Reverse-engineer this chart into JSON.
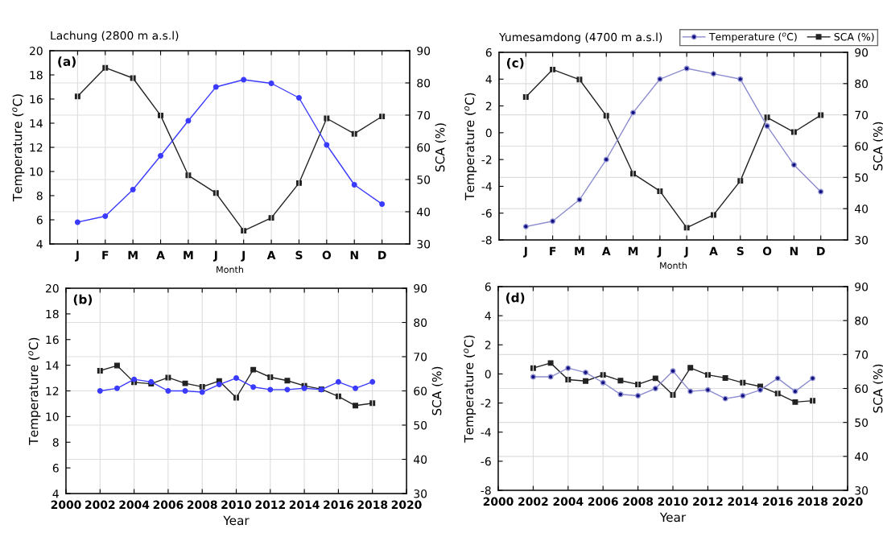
{
  "chart_data": [
    {
      "type": "line",
      "title": "Lachung (2800 m a.s.l)",
      "xlabel": "Month",
      "ylabel": "Temperature ($^{o}$C)",
      "y2label": "SCA (%)",
      "annotations": [
        "(a)"
      ],
      "categories": [
        "J",
        "F",
        "M",
        "A",
        "M",
        "J",
        "J",
        "A",
        "S",
        "O",
        "N",
        "D"
      ],
      "series": [
        {
          "color": "#3b3bff",
          "marker": "circle",
          "values": [
            5.8,
            6.3,
            8.5,
            11.3,
            14.2,
            17.0,
            17.6,
            17.3,
            16.1,
            12.2,
            8.9,
            7.3
          ]
        },
        {
          "color": "#222222",
          "marker": "square",
          "axis": "y2",
          "values": [
            75.8,
            84.7,
            81.5,
            69.9,
            51.3,
            45.8,
            34.1,
            38.1,
            48.9,
            69.0,
            64.2,
            69.6
          ]
        }
      ],
      "ylim": [
        4,
        20
      ],
      "yticks": [
        4,
        6,
        8,
        10,
        12,
        14,
        16,
        18,
        20
      ],
      "y2lim": [
        30,
        90
      ],
      "y2ticks": [
        30,
        40,
        50,
        60,
        70,
        80,
        90
      ],
      "grid": true,
      "legend": false
    },
    {
      "type": "line",
      "xlabel": "Year",
      "ylabel": "Temperature ($^{o}$C)",
      "y2label": "SCA (%)",
      "annotations": [
        "(b)"
      ],
      "x": [
        2002,
        2003,
        2004,
        2005,
        2006,
        2007,
        2008,
        2009,
        2010,
        2011,
        2012,
        2013,
        2014,
        2015,
        2016,
        2017,
        2018
      ],
      "series": [
        {
          "color": "#3b3bff",
          "marker": "circle",
          "values": [
            12.0,
            12.2,
            12.9,
            12.7,
            12.0,
            12.0,
            11.9,
            12.5,
            13.0,
            12.3,
            12.1,
            12.1,
            12.2,
            12.1,
            12.7,
            12.2,
            12.7
          ]
        },
        {
          "color": "#222222",
          "marker": "square",
          "axis": "y2",
          "values": [
            65.9,
            67.4,
            62.5,
            62.1,
            63.9,
            62.2,
            61.2,
            62.9,
            58.0,
            66.2,
            64.0,
            63.0,
            61.5,
            60.5,
            58.4,
            55.7,
            56.4
          ]
        }
      ],
      "xlim": [
        2000,
        2020
      ],
      "xticks": [
        2000,
        2002,
        2004,
        2006,
        2008,
        2010,
        2012,
        2014,
        2016,
        2018,
        2020
      ],
      "ylim": [
        4,
        20
      ],
      "yticks": [
        4,
        6,
        8,
        10,
        12,
        14,
        16,
        18,
        20
      ],
      "y2lim": [
        30,
        90
      ],
      "y2ticks": [
        30,
        40,
        50,
        60,
        70,
        80,
        90
      ],
      "grid": true,
      "legend": false
    },
    {
      "type": "line",
      "title": "Yumesamdong (4700 m a.s.l)",
      "xlabel": "Month",
      "ylabel": "Temperature ($^{o}$C)",
      "y2label": "SCA (%)",
      "annotations": [
        "(c)"
      ],
      "categories": [
        "J",
        "F",
        "M",
        "A",
        "M",
        "J",
        "J",
        "A",
        "S",
        "O",
        "N",
        "D"
      ],
      "series": [
        {
          "name": "Temperature ($^{o}$C)",
          "color": "#8c8cd0",
          "marker": "circle",
          "values": [
            -7.0,
            -6.6,
            -5.0,
            -2.0,
            1.5,
            4.0,
            4.8,
            4.4,
            4.0,
            0.5,
            -2.4,
            -4.4
          ]
        },
        {
          "name": "SCA (%)",
          "color": "#222222",
          "marker": "square",
          "axis": "y2",
          "values": [
            75.7,
            84.5,
            81.3,
            69.7,
            51.2,
            45.6,
            33.9,
            38.0,
            48.9,
            69.2,
            64.5,
            69.9
          ]
        }
      ],
      "ylim": [
        -8,
        6
      ],
      "yticks": [
        -8,
        -6,
        -4,
        -2,
        0,
        2,
        4,
        6
      ],
      "y2lim": [
        30,
        90
      ],
      "y2ticks": [
        30,
        40,
        50,
        60,
        70,
        80,
        90
      ],
      "grid": true,
      "legend": "top right"
    },
    {
      "type": "line",
      "xlabel": "Year",
      "ylabel": "Temperature ($^{o}$C)",
      "y2label": "SCA (%)",
      "annotations": [
        "(d)"
      ],
      "x": [
        2002,
        2003,
        2004,
        2005,
        2006,
        2007,
        2008,
        2009,
        2010,
        2011,
        2012,
        2013,
        2014,
        2015,
        2016,
        2017,
        2018
      ],
      "series": [
        {
          "color": "#8c8cd0",
          "marker": "circle",
          "values": [
            -0.2,
            -0.2,
            0.4,
            0.1,
            -0.6,
            -1.4,
            -1.5,
            -1.0,
            0.2,
            -1.2,
            -1.1,
            -1.7,
            -1.5,
            -1.1,
            -0.3,
            -1.2,
            -0.3
          ]
        },
        {
          "color": "#222222",
          "marker": "square",
          "axis": "y2",
          "values": [
            66.0,
            67.5,
            62.6,
            62.2,
            64.0,
            62.3,
            61.2,
            63.0,
            58.1,
            66.1,
            64.0,
            63.1,
            61.7,
            60.6,
            58.5,
            56.0,
            56.4
          ]
        }
      ],
      "xlim": [
        2000,
        2020
      ],
      "xticks": [
        2000,
        2002,
        2004,
        2006,
        2008,
        2010,
        2012,
        2014,
        2016,
        2018,
        2020
      ],
      "ylim": [
        -8,
        6
      ],
      "yticks": [
        -8,
        -6,
        -4,
        -2,
        0,
        2,
        4,
        6
      ],
      "y2lim": [
        30,
        90
      ],
      "y2ticks": [
        30,
        40,
        50,
        60,
        70,
        80,
        90
      ],
      "grid": true,
      "legend": false
    }
  ]
}
